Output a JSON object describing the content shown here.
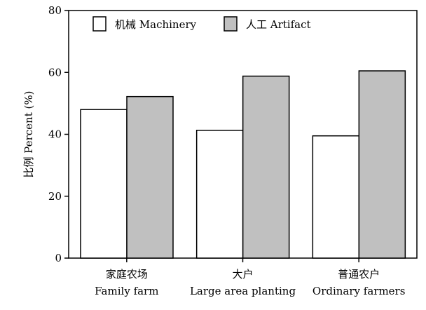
{
  "chart_data": {
    "type": "bar",
    "ylabel": "比例 Percent (%)",
    "ylim": [
      0,
      80
    ],
    "yticks": [
      0,
      20,
      40,
      60,
      80
    ],
    "categories": [
      {
        "zh": "家庭农场",
        "en": "Family farm"
      },
      {
        "zh": "大户",
        "en": "Large area planting"
      },
      {
        "zh": "普通农户",
        "en": "Ordinary farmers"
      }
    ],
    "series": [
      {
        "name": "机械 Machinery",
        "values": [
          48,
          41.3,
          39.5
        ],
        "color": "#ffffff"
      },
      {
        "name": "人工 Artifact",
        "values": [
          52.2,
          58.8,
          60.5
        ],
        "color": "#c0c0c0"
      }
    ],
    "legend_position": "top-left",
    "grid": false
  }
}
